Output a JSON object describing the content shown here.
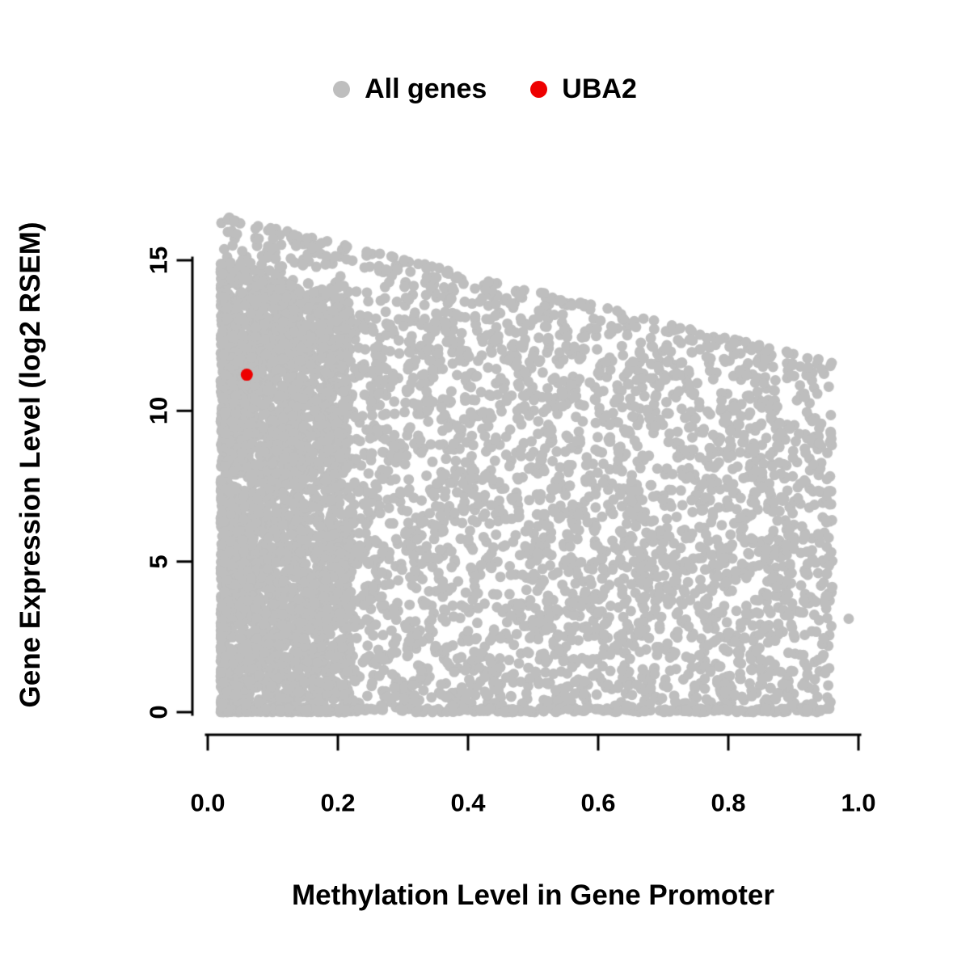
{
  "figure": {
    "background": "#ffffff"
  },
  "chart_data": {
    "type": "scatter",
    "title": "",
    "xlabel": "Methylation Level in Gene Promoter",
    "ylabel": "Gene Expression Level (log2 RSEM)",
    "xlim": [
      0,
      1
    ],
    "ylim": [
      0,
      17
    ],
    "x_ticks": [
      "0.0",
      "0.2",
      "0.4",
      "0.6",
      "0.8",
      "1.0"
    ],
    "x_tick_values": [
      0,
      0.2,
      0.4,
      0.6,
      0.8,
      1.0
    ],
    "y_ticks": [
      "0",
      "5",
      "10",
      "15"
    ],
    "y_tick_values": [
      0,
      5,
      10,
      15
    ],
    "grid": false,
    "legend": {
      "position": "top-center",
      "entries": [
        {
          "label": "All genes",
          "color": "#bebebe"
        },
        {
          "label": "UBA2",
          "color": "#ee0000"
        }
      ]
    },
    "series": [
      {
        "name": "All genes",
        "color": "#bebebe",
        "marker": "filled-circle",
        "point_radius_px": 6.5,
        "n_points": 6200,
        "n_edge_points": 420,
        "seed": 20240613,
        "x_range": [
          0.02,
          0.96
        ],
        "upper_envelope": {
          "y_at_x0": 16.1,
          "y_at_x1": 10.9
        },
        "description": "Dense cloud of thousands of genes; density highest at low methylation; expression spans 0 to ~16.5 log2 RSEM; maximum expression declines as promoter methylation increases"
      },
      {
        "name": "UBA2",
        "color": "#ee0000",
        "marker": "filled-circle",
        "point_radius_px": 7.5,
        "points": [
          {
            "x": 0.06,
            "y": 11.2
          }
        ]
      }
    ],
    "outlier_points": [
      {
        "x": 0.985,
        "y": 3.1
      }
    ]
  }
}
